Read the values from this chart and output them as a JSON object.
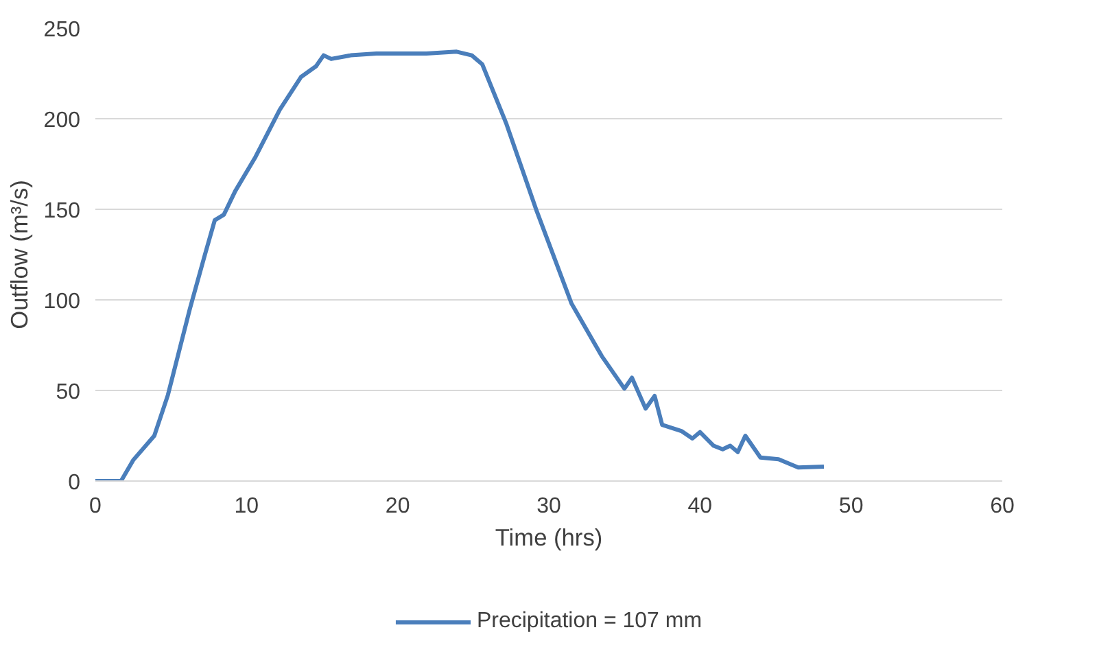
{
  "chart_data": {
    "type": "line",
    "xlabel": "Time (hrs)",
    "ylabel": "Outflow (m³/s)",
    "xlim": [
      0,
      60
    ],
    "xticks": [
      0,
      10,
      20,
      30,
      40,
      50,
      60
    ],
    "ylim": [
      0,
      250
    ],
    "yticks": [
      0,
      50,
      100,
      150,
      200,
      250
    ],
    "grid": "y",
    "legend": "bottom",
    "marker": "none",
    "line_style": "solid",
    "series": [
      {
        "name": "Precipitation = 107 mm",
        "color": "#4a7ebb",
        "x": [
          0,
          1.7,
          2.5,
          3.9,
          4.8,
          6.25,
          7.25,
          7.9,
          8.5,
          9.25,
          10.6,
          12.2,
          13.6,
          14.6,
          15.1,
          15.6,
          16.9,
          18.6,
          20.2,
          21.9,
          23.9,
          24.9,
          25.6,
          27.2,
          29.2,
          31.5,
          33.5,
          35.0,
          35.5,
          36.4,
          37.0,
          37.5,
          38.8,
          39.5,
          40.0,
          40.9,
          41.5,
          42.0,
          42.5,
          43.0,
          44.0,
          45.2,
          46.5,
          48.2
        ],
        "values": [
          0,
          0,
          11.5,
          25,
          47.5,
          95,
          125,
          144,
          147,
          160,
          179,
          205,
          223,
          229,
          235,
          233,
          235,
          236,
          236,
          236,
          237,
          235,
          230,
          197,
          149,
          98,
          69,
          51,
          57,
          40,
          47,
          31,
          27.5,
          23.5,
          27,
          19.5,
          17.5,
          19.5,
          16,
          25,
          13,
          12,
          7.5,
          8
        ]
      }
    ]
  }
}
